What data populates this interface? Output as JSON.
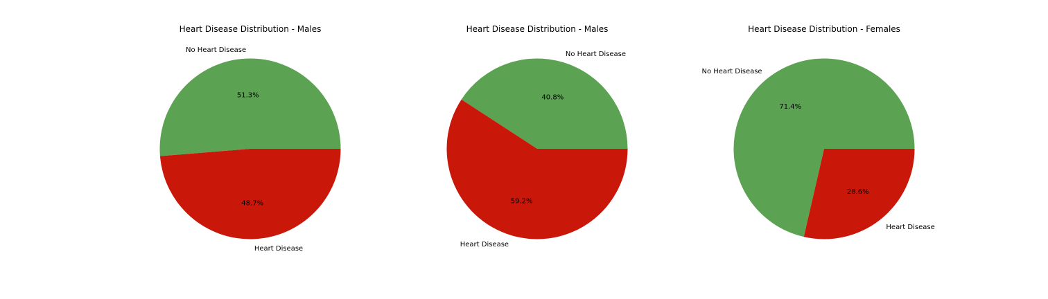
{
  "chart_data": [
    {
      "type": "pie",
      "title": "Heart Disease Distribution - Males",
      "labels": [
        "No Heart Disease",
        "Heart Disease"
      ],
      "values": [
        51.3,
        48.7
      ],
      "value_labels": [
        "51.3%",
        "48.7%"
      ],
      "colors": [
        "#5ba252",
        "#c9170a"
      ],
      "start_angle_deg": 0,
      "direction": "counterclockwise",
      "legend": "none"
    },
    {
      "type": "pie",
      "title": "Heart Disease Distribution - Males",
      "labels": [
        "No Heart Disease",
        "Heart Disease"
      ],
      "values": [
        40.8,
        59.2
      ],
      "value_labels": [
        "40.8%",
        "59.2%"
      ],
      "colors": [
        "#5ba252",
        "#c9170a"
      ],
      "start_angle_deg": 0,
      "direction": "counterclockwise",
      "legend": "none"
    },
    {
      "type": "pie",
      "title": "Heart Disease Distribution - Females",
      "labels": [
        "No Heart Disease",
        "Heart Disease"
      ],
      "values": [
        71.4,
        28.6
      ],
      "value_labels": [
        "71.4%",
        "28.6%"
      ],
      "colors": [
        "#5ba252",
        "#c9170a"
      ],
      "start_angle_deg": 0,
      "direction": "counterclockwise",
      "legend": "none"
    }
  ]
}
